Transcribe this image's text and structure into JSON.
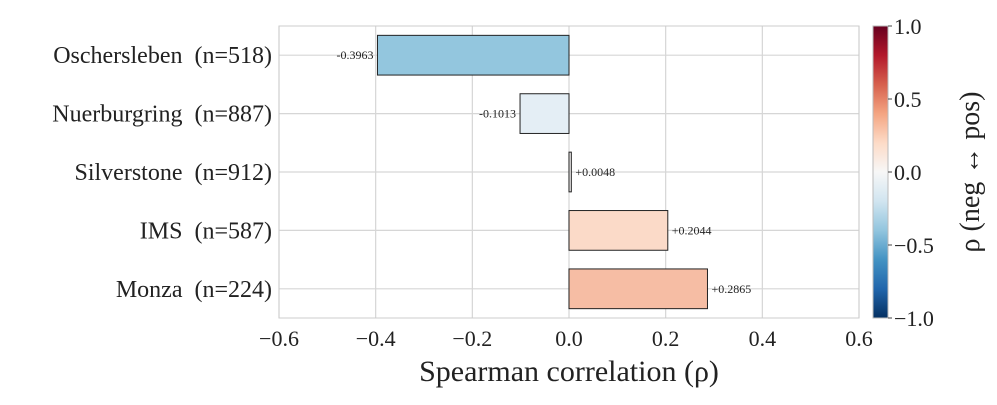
{
  "chart_data": {
    "type": "bar",
    "orientation": "horizontal",
    "categories": [
      "Oschersleben  (n=518)",
      "Nuerburgring  (n=887)",
      "Silverstone  (n=912)",
      "IMS  (n=587)",
      "Monza  (n=224)"
    ],
    "values": [
      -0.3963,
      -0.1013,
      0.0048,
      0.2044,
      0.2865
    ],
    "value_labels": [
      "-0.3963",
      "-0.1013",
      "+0.0048",
      "+0.2044",
      "+0.2865"
    ],
    "bar_colors": [
      "#93c6de",
      "#e4eef5",
      "#f2f0ef",
      "#fbdac8",
      "#f6bda4"
    ],
    "title": "",
    "xlabel": "Spearman correlation (ρ)",
    "ylabel": "",
    "xlim": [
      -0.6,
      0.6
    ],
    "xticks": [
      -0.6,
      -0.4,
      -0.2,
      0.0,
      0.2,
      0.4,
      0.6
    ],
    "xtick_labels": [
      "−0.6",
      "−0.4",
      "−0.2",
      "0.0",
      "0.2",
      "0.4",
      "0.6"
    ],
    "grid": true,
    "colorbar": {
      "label": "ρ (neg ↔ pos)",
      "colormap": "RdBu_r",
      "range": [
        -1.0,
        1.0
      ],
      "ticks": [
        1.0,
        0.5,
        0.0,
        -0.5,
        -1.0
      ],
      "tick_labels": [
        "1.0",
        "0.5",
        "0.0",
        "−0.5",
        "−1.0"
      ],
      "stops": [
        "#053061",
        "#2166ac",
        "#4393c3",
        "#92c5de",
        "#d1e5f0",
        "#f7f7f7",
        "#fddbc7",
        "#f4a582",
        "#d6604d",
        "#b2182b",
        "#67001f"
      ]
    }
  }
}
